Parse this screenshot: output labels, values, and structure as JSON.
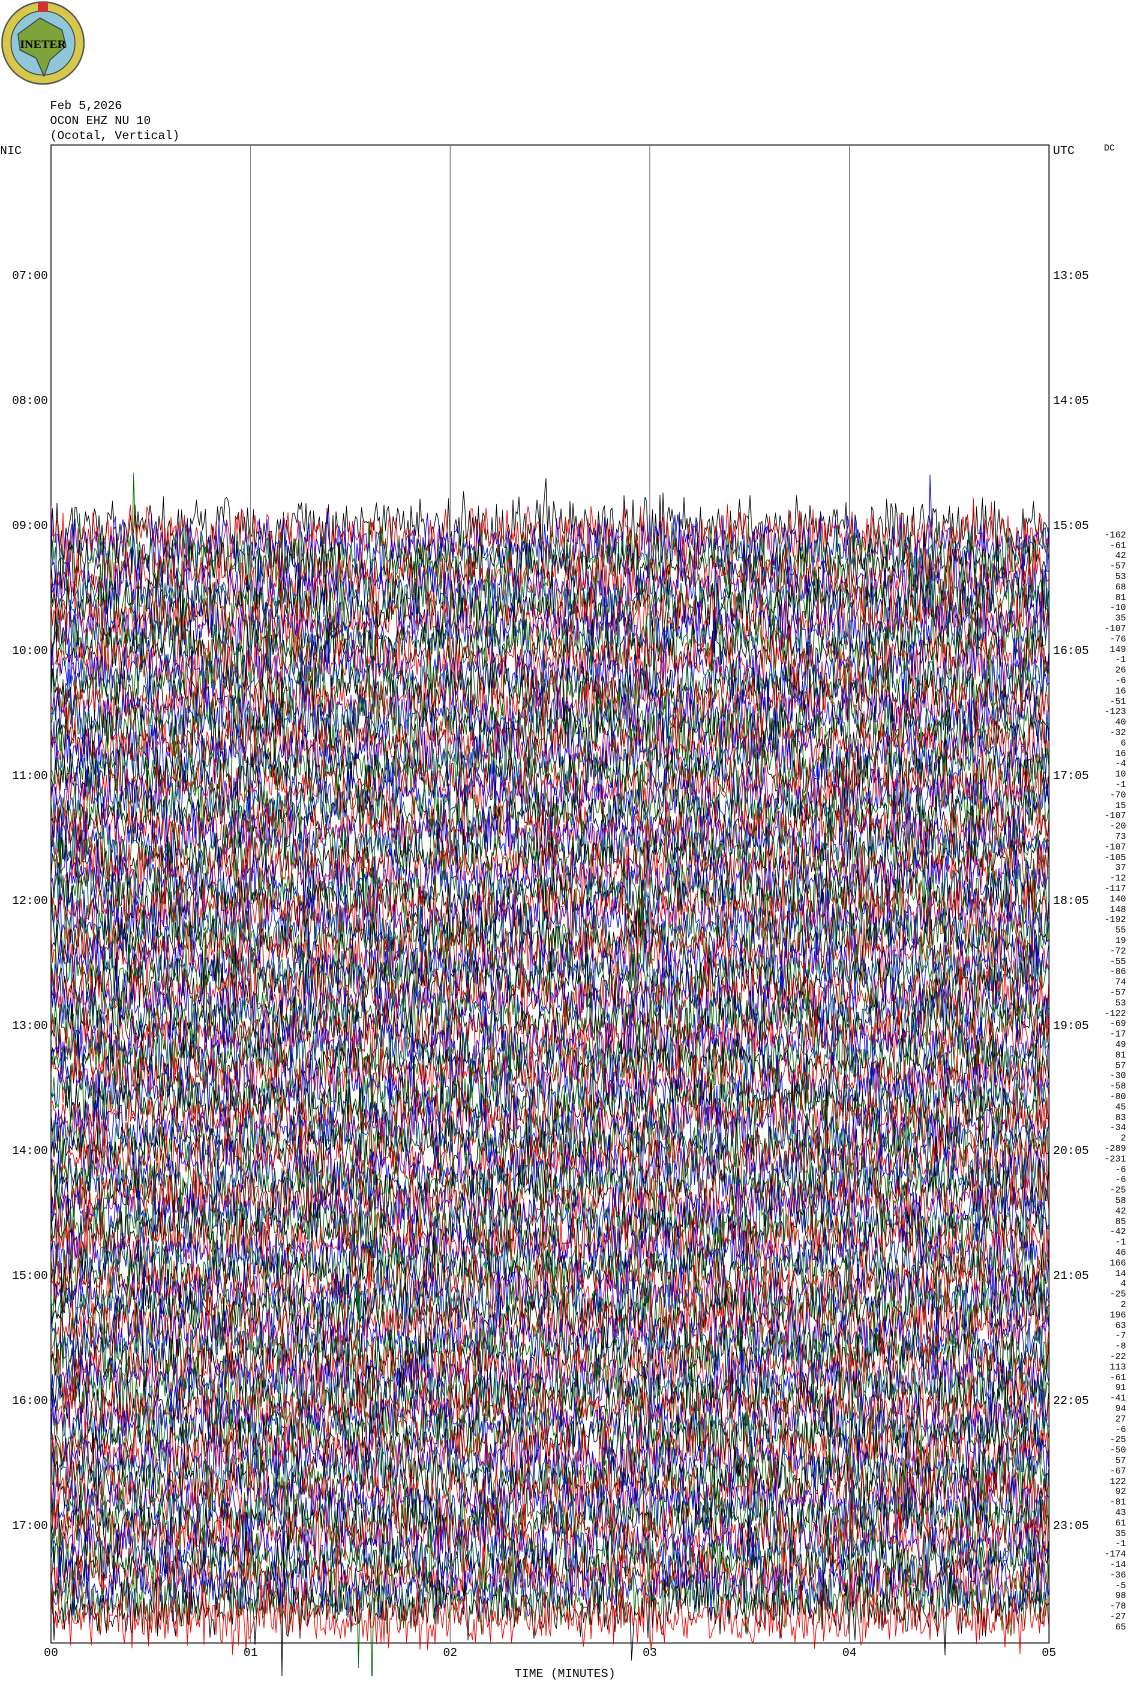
{
  "logo": {
    "text": "INETER"
  },
  "header": {
    "date": "Feb 5,2026",
    "station": "OCON EHZ NU 10",
    "location": "(Ocotal, Vertical)"
  },
  "left_axis": {
    "label": "NIC",
    "times": [
      "07:00",
      "08:00",
      "09:00",
      "10:00",
      "11:00",
      "12:00",
      "13:00",
      "14:00",
      "15:00",
      "16:00",
      "17:00"
    ]
  },
  "right_axis": {
    "label": "UTC",
    "times": [
      "13:05",
      "14:05",
      "15:05",
      "16:05",
      "17:05",
      "18:05",
      "19:05",
      "20:05",
      "21:05",
      "22:05",
      "23:05"
    ]
  },
  "dc": {
    "label": "DC",
    "values": [
      -162,
      -61,
      42,
      -57,
      53,
      68,
      81,
      -10,
      35,
      -107,
      -76,
      149,
      -1,
      26,
      -6,
      16,
      -51,
      -123,
      40,
      -32,
      6,
      16,
      -4,
      10,
      -1,
      -70,
      15,
      -107,
      -20,
      73,
      -107,
      -105,
      37,
      -12,
      -117,
      140,
      148,
      -192,
      55,
      19,
      -72,
      -55,
      -86,
      74,
      -57,
      53,
      -122,
      -69,
      -17,
      49,
      81,
      57,
      -30,
      -58,
      -80,
      45,
      83,
      -34,
      2,
      -289,
      -231,
      -6,
      -6,
      -25,
      58,
      42,
      85,
      -42,
      -1,
      46,
      166,
      14,
      4,
      -25,
      2,
      196,
      63,
      -7,
      -8,
      -22,
      113,
      -61,
      91,
      -41,
      94,
      27,
      -6,
      -25,
      -50,
      57,
      -67,
      122,
      92,
      -81,
      43,
      61,
      35,
      -1,
      -174,
      -14,
      -36,
      -5,
      98,
      -78,
      -27,
      65
    ]
  },
  "x_axis": {
    "label": "TIME (MINUTES)",
    "ticks": [
      "00",
      "01",
      "02",
      "03",
      "04",
      "05"
    ]
  }
}
